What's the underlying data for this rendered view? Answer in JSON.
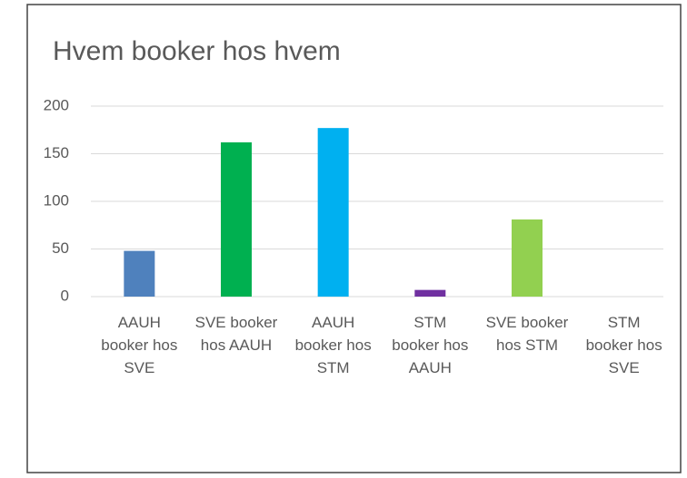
{
  "chart_data": {
    "type": "bar",
    "title": "Hvem booker hos hvem",
    "categories": [
      "AAUH booker hos SVE",
      "SVE booker hos AAUH",
      "AAUH booker hos STM",
      "STM booker hos AAUH",
      "SVE booker hos STM",
      "STM booker hos SVE"
    ],
    "values": [
      48,
      162,
      177,
      7,
      81,
      0
    ],
    "colors": [
      "#4f81bd",
      "#00b050",
      "#00b0f0",
      "#7030a0",
      "#92d050"
    ],
    "ylim": [
      0,
      200
    ],
    "yticks": [
      0,
      50,
      100,
      150,
      200
    ],
    "grid": true
  }
}
